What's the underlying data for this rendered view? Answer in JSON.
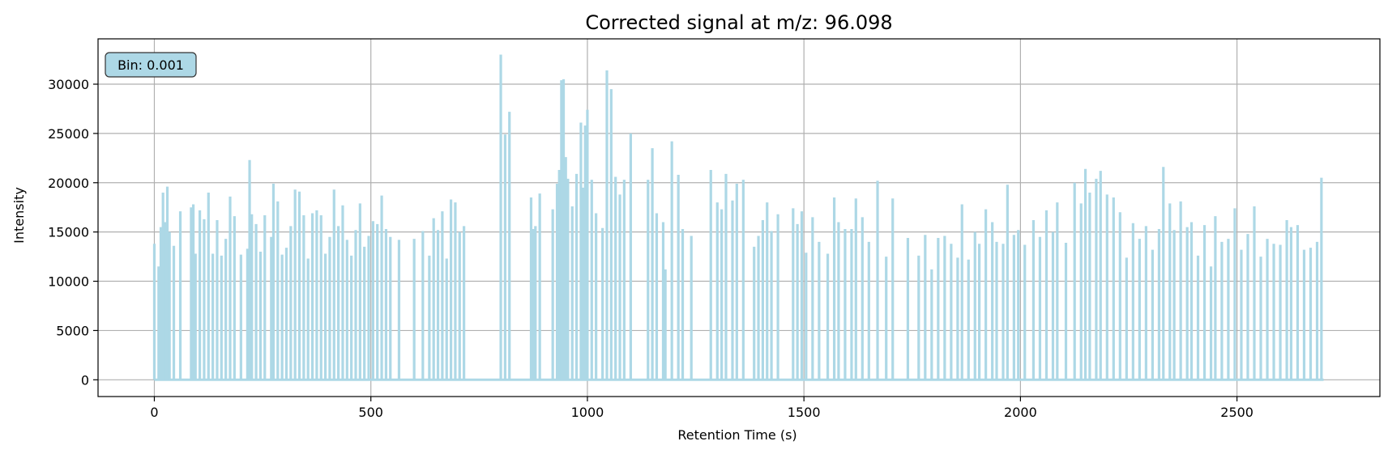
{
  "chart_data": {
    "type": "line",
    "title": "Corrected signal at m/z: 96.098",
    "xlabel": "Retention Time (s)",
    "ylabel": "Intensity",
    "xlim": [
      -130,
      2830
    ],
    "ylim": [
      -1700,
      34600
    ],
    "xticks": [
      0,
      500,
      1000,
      1500,
      2000,
      2500
    ],
    "yticks": [
      0,
      5000,
      10000,
      15000,
      20000,
      25000,
      30000
    ],
    "grid": true,
    "annotation": "Bin: 0.001",
    "series": [
      {
        "color": "#add8e6",
        "x_range": [
          0,
          2700
        ],
        "gaps": [
          [
            720,
            795
          ]
        ],
        "points": [
          [
            0,
            13800
          ],
          [
            10,
            11500
          ],
          [
            15,
            15500
          ],
          [
            20,
            19000
          ],
          [
            25,
            16000
          ],
          [
            30,
            19600
          ],
          [
            35,
            15000
          ],
          [
            45,
            13600
          ],
          [
            60,
            17100
          ],
          [
            85,
            17500
          ],
          [
            90,
            17800
          ],
          [
            95,
            12800
          ],
          [
            105,
            17200
          ],
          [
            115,
            16300
          ],
          [
            125,
            19000
          ],
          [
            135,
            12800
          ],
          [
            145,
            16200
          ],
          [
            155,
            12600
          ],
          [
            165,
            14300
          ],
          [
            175,
            18600
          ],
          [
            185,
            16600
          ],
          [
            200,
            12700
          ],
          [
            215,
            13300
          ],
          [
            220,
            22300
          ],
          [
            225,
            16800
          ],
          [
            235,
            15800
          ],
          [
            245,
            13000
          ],
          [
            255,
            16700
          ],
          [
            270,
            14500
          ],
          [
            275,
            19900
          ],
          [
            285,
            18100
          ],
          [
            295,
            12700
          ],
          [
            305,
            13400
          ],
          [
            315,
            15600
          ],
          [
            325,
            19300
          ],
          [
            335,
            19100
          ],
          [
            345,
            16700
          ],
          [
            355,
            12300
          ],
          [
            365,
            16900
          ],
          [
            375,
            17200
          ],
          [
            385,
            16700
          ],
          [
            395,
            12800
          ],
          [
            405,
            14500
          ],
          [
            415,
            19300
          ],
          [
            425,
            15600
          ],
          [
            435,
            17700
          ],
          [
            445,
            14200
          ],
          [
            455,
            12600
          ],
          [
            465,
            15200
          ],
          [
            475,
            17900
          ],
          [
            485,
            13500
          ],
          [
            495,
            14600
          ],
          [
            505,
            16100
          ],
          [
            515,
            15800
          ],
          [
            525,
            18700
          ],
          [
            535,
            15300
          ],
          [
            545,
            14500
          ],
          [
            565,
            14200
          ],
          [
            600,
            14300
          ],
          [
            620,
            15100
          ],
          [
            635,
            12600
          ],
          [
            645,
            16400
          ],
          [
            655,
            15200
          ],
          [
            665,
            17100
          ],
          [
            675,
            12300
          ],
          [
            685,
            18300
          ],
          [
            695,
            18000
          ],
          [
            705,
            15000
          ],
          [
            715,
            15600
          ],
          [
            800,
            33000
          ],
          [
            810,
            24900
          ],
          [
            820,
            27200
          ],
          [
            870,
            18500
          ],
          [
            875,
            15300
          ],
          [
            880,
            15600
          ],
          [
            890,
            18900
          ],
          [
            920,
            17300
          ],
          [
            930,
            19900
          ],
          [
            935,
            21300
          ],
          [
            940,
            30400
          ],
          [
            945,
            30500
          ],
          [
            950,
            22600
          ],
          [
            955,
            20400
          ],
          [
            965,
            17600
          ],
          [
            975,
            20900
          ],
          [
            985,
            26100
          ],
          [
            990,
            19500
          ],
          [
            995,
            25800
          ],
          [
            1000,
            27400
          ],
          [
            1010,
            20300
          ],
          [
            1020,
            16900
          ],
          [
            1035,
            15400
          ],
          [
            1045,
            31400
          ],
          [
            1055,
            29500
          ],
          [
            1065,
            20600
          ],
          [
            1075,
            18800
          ],
          [
            1085,
            20300
          ],
          [
            1100,
            25000
          ],
          [
            1140,
            20300
          ],
          [
            1150,
            23500
          ],
          [
            1160,
            16900
          ],
          [
            1175,
            16000
          ],
          [
            1180,
            11200
          ],
          [
            1195,
            24200
          ],
          [
            1210,
            20800
          ],
          [
            1220,
            15300
          ],
          [
            1240,
            14600
          ],
          [
            1285,
            21300
          ],
          [
            1300,
            18000
          ],
          [
            1310,
            17300
          ],
          [
            1320,
            20900
          ],
          [
            1335,
            18200
          ],
          [
            1345,
            19900
          ],
          [
            1360,
            20300
          ],
          [
            1385,
            13500
          ],
          [
            1395,
            14600
          ],
          [
            1405,
            16200
          ],
          [
            1415,
            18000
          ],
          [
            1425,
            15100
          ],
          [
            1440,
            16800
          ],
          [
            1475,
            17400
          ],
          [
            1485,
            15800
          ],
          [
            1495,
            17100
          ],
          [
            1505,
            12900
          ],
          [
            1520,
            16500
          ],
          [
            1535,
            14000
          ],
          [
            1555,
            12800
          ],
          [
            1570,
            18500
          ],
          [
            1580,
            16000
          ],
          [
            1595,
            15300
          ],
          [
            1610,
            15300
          ],
          [
            1620,
            18400
          ],
          [
            1635,
            16500
          ],
          [
            1650,
            14000
          ],
          [
            1670,
            20200
          ],
          [
            1690,
            12500
          ],
          [
            1705,
            18400
          ],
          [
            1740,
            14400
          ],
          [
            1765,
            12600
          ],
          [
            1780,
            14700
          ],
          [
            1795,
            11200
          ],
          [
            1810,
            14400
          ],
          [
            1825,
            14600
          ],
          [
            1840,
            13800
          ],
          [
            1855,
            12400
          ],
          [
            1865,
            17800
          ],
          [
            1880,
            12200
          ],
          [
            1895,
            15000
          ],
          [
            1905,
            13800
          ],
          [
            1920,
            17300
          ],
          [
            1935,
            16000
          ],
          [
            1945,
            14000
          ],
          [
            1960,
            13800
          ],
          [
            1970,
            19800
          ],
          [
            1985,
            14700
          ],
          [
            1995,
            15200
          ],
          [
            2010,
            13700
          ],
          [
            2030,
            16200
          ],
          [
            2045,
            14500
          ],
          [
            2060,
            17200
          ],
          [
            2075,
            15000
          ],
          [
            2085,
            18000
          ],
          [
            2105,
            13900
          ],
          [
            2125,
            20000
          ],
          [
            2140,
            17900
          ],
          [
            2150,
            21400
          ],
          [
            2160,
            19000
          ],
          [
            2175,
            20400
          ],
          [
            2185,
            21200
          ],
          [
            2200,
            18800
          ],
          [
            2215,
            18500
          ],
          [
            2230,
            17000
          ],
          [
            2245,
            12400
          ],
          [
            2260,
            15900
          ],
          [
            2275,
            14300
          ],
          [
            2290,
            15600
          ],
          [
            2305,
            13200
          ],
          [
            2320,
            15300
          ],
          [
            2330,
            21600
          ],
          [
            2345,
            17900
          ],
          [
            2355,
            15200
          ],
          [
            2370,
            18100
          ],
          [
            2385,
            15500
          ],
          [
            2395,
            16000
          ],
          [
            2410,
            12600
          ],
          [
            2425,
            15700
          ],
          [
            2440,
            11500
          ],
          [
            2450,
            16600
          ],
          [
            2465,
            14000
          ],
          [
            2480,
            14300
          ],
          [
            2495,
            17400
          ],
          [
            2510,
            13200
          ],
          [
            2525,
            14800
          ],
          [
            2540,
            17600
          ],
          [
            2555,
            12500
          ],
          [
            2570,
            14300
          ],
          [
            2585,
            13800
          ],
          [
            2600,
            13700
          ],
          [
            2615,
            16200
          ],
          [
            2625,
            15500
          ],
          [
            2640,
            15700
          ],
          [
            2655,
            13200
          ],
          [
            2670,
            13400
          ],
          [
            2685,
            14000
          ],
          [
            2695,
            20500
          ]
        ]
      }
    ]
  }
}
